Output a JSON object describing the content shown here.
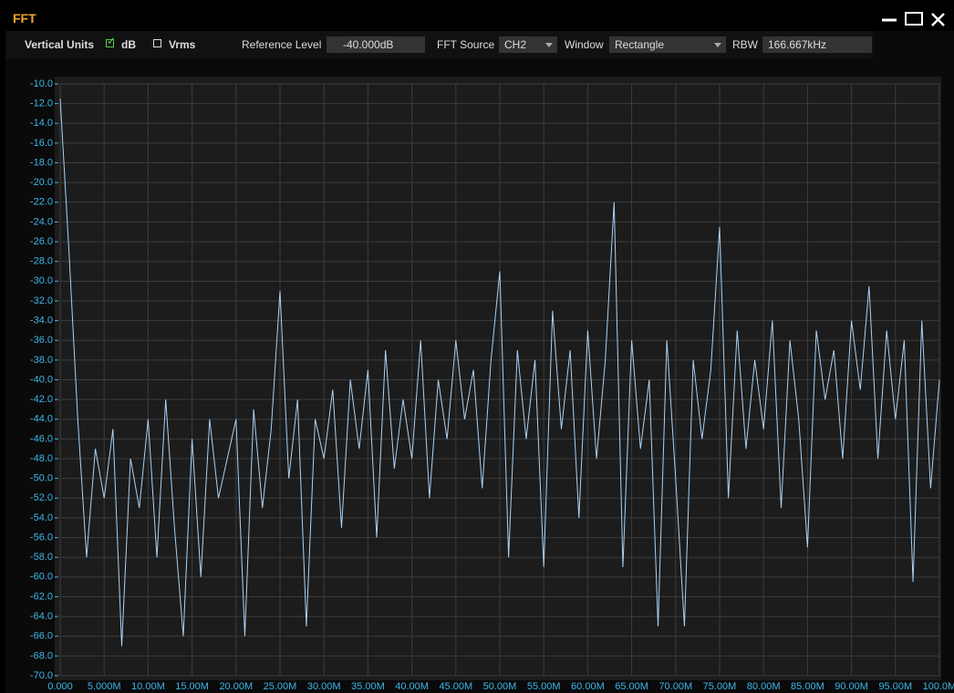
{
  "window": {
    "title": "FFT"
  },
  "toolbar": {
    "vertical_units_label": "Vertical Units",
    "options": [
      {
        "label": "dB",
        "checked": true
      },
      {
        "label": "Vrms",
        "checked": false
      }
    ],
    "reference_level_label": "Reference Level",
    "reference_level": "-40.000dB",
    "fft_source_label": "FFT Source",
    "fft_source": "CH2",
    "window_label": "Window",
    "window": "Rectangle",
    "rbw_label": "RBW",
    "rbw": "166.667kHz"
  },
  "chart_data": {
    "type": "line",
    "grid": true,
    "x": [
      0,
      1,
      2,
      3,
      4,
      5,
      6,
      7,
      8,
      9,
      10,
      11,
      12,
      13,
      14,
      15,
      16,
      17,
      18,
      19,
      20,
      21,
      22,
      23,
      24,
      25,
      26,
      27,
      28,
      29,
      30,
      31,
      32,
      33,
      34,
      35,
      36,
      37,
      38,
      39,
      40,
      41,
      42,
      43,
      44,
      45,
      46,
      47,
      48,
      49,
      50,
      51,
      52,
      53,
      54,
      55,
      56,
      57,
      58,
      59,
      60,
      61,
      62,
      63,
      64,
      65,
      66,
      67,
      68,
      69,
      70,
      71,
      72,
      73,
      74,
      75,
      76,
      77,
      78,
      79,
      80,
      81,
      82,
      83,
      84,
      85,
      86,
      87,
      88,
      89,
      90,
      91,
      92,
      93,
      94,
      95,
      96,
      97,
      98,
      99,
      100
    ],
    "series": [
      {
        "color": "#a9d2f5",
        "values": [
          -11.5,
          -27,
          -44,
          -58,
          -47,
          -52,
          -45,
          -67,
          -48,
          -53,
          -44,
          -58,
          -42,
          -55,
          -66,
          -46,
          -60,
          -44,
          -52,
          -48,
          -44,
          -66,
          -43,
          -53,
          -45,
          -31,
          -50,
          -42,
          -65,
          -44,
          -48,
          -41,
          -55,
          -40,
          -47,
          -39,
          -56,
          -37,
          -49,
          -42,
          -48,
          -36,
          -52,
          -40,
          -46,
          -36,
          -44,
          -39,
          -51,
          -38,
          -29,
          -58,
          -37,
          -46,
          -38,
          -59,
          -33,
          -45,
          -37,
          -54,
          -35,
          -48,
          -38,
          -22,
          -59,
          -36,
          -47,
          -40,
          -65,
          -36,
          -50,
          -65,
          -38,
          -46,
          -39,
          -24.5,
          -52,
          -35,
          -47,
          -38,
          -45,
          -34,
          -53,
          -36,
          -44,
          -57,
          -35,
          -42,
          -37,
          -48,
          -34,
          -41,
          -30.5,
          -48,
          -35,
          -44,
          -36,
          -60.5,
          -34,
          -51,
          -40
        ]
      }
    ],
    "xlim": [
      0,
      100
    ],
    "ylim": [
      -70,
      -10
    ],
    "xticks": [
      {
        "value": 0,
        "label": "0.000"
      },
      {
        "value": 5,
        "label": "5.000M"
      },
      {
        "value": 10,
        "label": "10.00M"
      },
      {
        "value": 15,
        "label": "15.00M"
      },
      {
        "value": 20,
        "label": "20.00M"
      },
      {
        "value": 25,
        "label": "25.00M"
      },
      {
        "value": 30,
        "label": "30.00M"
      },
      {
        "value": 35,
        "label": "35.00M"
      },
      {
        "value": 40,
        "label": "40.00M"
      },
      {
        "value": 45,
        "label": "45.00M"
      },
      {
        "value": 50,
        "label": "50.00M"
      },
      {
        "value": 55,
        "label": "55.00M"
      },
      {
        "value": 60,
        "label": "60.00M"
      },
      {
        "value": 65,
        "label": "65.00M"
      },
      {
        "value": 70,
        "label": "70.00M"
      },
      {
        "value": 75,
        "label": "75.00M"
      },
      {
        "value": 80,
        "label": "80.00M"
      },
      {
        "value": 85,
        "label": "85.00M"
      },
      {
        "value": 90,
        "label": "90.00M"
      },
      {
        "value": 95,
        "label": "95.00M"
      },
      {
        "value": 100,
        "label": "100.0M"
      }
    ],
    "yticks": [
      {
        "value": -10,
        "label": "-10.0"
      },
      {
        "value": -12,
        "label": "-12.0"
      },
      {
        "value": -14,
        "label": "-14.0"
      },
      {
        "value": -16,
        "label": "-16.0"
      },
      {
        "value": -18,
        "label": "-18.0"
      },
      {
        "value": -20,
        "label": "-20.0"
      },
      {
        "value": -22,
        "label": "-22.0"
      },
      {
        "value": -24,
        "label": "-24.0"
      },
      {
        "value": -26,
        "label": "-26.0"
      },
      {
        "value": -28,
        "label": "-28.0"
      },
      {
        "value": -30,
        "label": "-30.0"
      },
      {
        "value": -32,
        "label": "-32.0"
      },
      {
        "value": -34,
        "label": "-34.0"
      },
      {
        "value": -36,
        "label": "-36.0"
      },
      {
        "value": -38,
        "label": "-38.0"
      },
      {
        "value": -40,
        "label": "-40.0"
      },
      {
        "value": -42,
        "label": "-42.0"
      },
      {
        "value": -44,
        "label": "-44.0"
      },
      {
        "value": -46,
        "label": "-46.0"
      },
      {
        "value": -48,
        "label": "-48.0"
      },
      {
        "value": -50,
        "label": "-50.0"
      },
      {
        "value": -52,
        "label": "-52.0"
      },
      {
        "value": -54,
        "label": "-54.0"
      },
      {
        "value": -56,
        "label": "-56.0"
      },
      {
        "value": -58,
        "label": "-58.0"
      },
      {
        "value": -60,
        "label": "-60.0"
      },
      {
        "value": -62,
        "label": "-62.0"
      },
      {
        "value": -64,
        "label": "-64.0"
      },
      {
        "value": -66,
        "label": "-66.0"
      },
      {
        "value": -68,
        "label": "-68.0"
      },
      {
        "value": -70,
        "label": "-70.0"
      }
    ]
  }
}
